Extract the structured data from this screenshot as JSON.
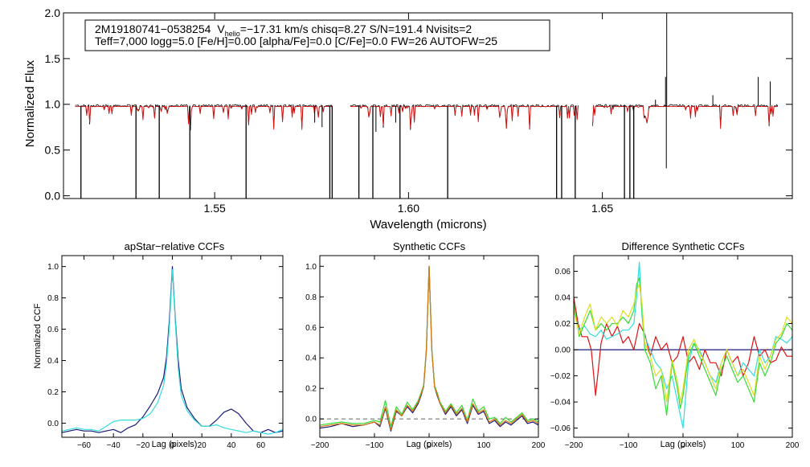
{
  "colors": {
    "axis": "#000000",
    "observed": "#000000",
    "model": "#dd1111",
    "navy": "#1a1a7a",
    "cyan": "#33dddd",
    "green": "#33dd33",
    "yellow": "#dddd22",
    "orange": "#dd7711",
    "gray_dash": "#777777"
  },
  "info_box": {
    "line1_star": "2M19180741−0538254",
    "line1_v": "V",
    "line1_sub": "helio",
    "line1_rest": "=−17.31 km/s  chisq=8.27  S/N=191.4  Nvisits=2",
    "line2": "Teff=7,000 logg=5.0 [Fe/H]=0.00 [alpha/Fe]=0.0 [C/Fe]=0.0 FW=26 AUTOFW=25"
  },
  "chart_data": [
    {
      "type": "line",
      "id": "spectrum",
      "xlabel": "Wavelength (microns)",
      "ylabel": "Normalized Flux",
      "xlim": [
        1.511,
        1.699
      ],
      "ylim": [
        -0.03,
        2.0
      ],
      "xticks": [
        1.55,
        1.6,
        1.65
      ],
      "xtick_labels": [
        "1.55",
        "1.60",
        "1.65"
      ],
      "yticks": [
        0.0,
        0.5,
        1.0,
        1.5,
        2.0
      ],
      "ytick_labels": [
        "0.0",
        "0.5",
        "1.0",
        "1.5",
        "2.0"
      ],
      "chips": [
        [
          1.514,
          1.5805
        ],
        [
          1.585,
          1.644
        ],
        [
          1.6475,
          1.6955
        ]
      ],
      "continuum": 0.985,
      "drops_to_zero": [
        1.5155,
        1.5297,
        1.5357,
        1.5436,
        1.5581,
        1.5797,
        1.5803,
        1.5872,
        1.5908,
        1.5978,
        1.6101,
        1.6382,
        1.6395,
        1.643,
        1.6557,
        1.6571,
        1.6581
      ],
      "emission_spikes": [
        {
          "x": 1.6666,
          "y": 2.0
        },
        {
          "x": 1.6663,
          "y": 1.3
        },
        {
          "x": 1.6637,
          "y": 1.05
        },
        {
          "x": 1.6902,
          "y": 1.3
        },
        {
          "x": 1.6933,
          "y": 1.25
        },
        {
          "x": 1.6785,
          "y": 1.1
        }
      ],
      "absorption_deep": [
        {
          "x": 1.6665,
          "y": 0.3
        },
        {
          "x": 1.5777,
          "y": 0.75
        },
        {
          "x": 1.5758,
          "y": 0.8
        },
        {
          "x": 1.5916,
          "y": 0.7
        },
        {
          "x": 1.5967,
          "y": 0.8
        }
      ],
      "series": [
        {
          "name": "observed",
          "color": "#000000"
        },
        {
          "name": "model",
          "color": "#dd1111"
        }
      ]
    },
    {
      "type": "line",
      "id": "apstar-ccf",
      "title": "apStar−relative CCFs",
      "xlabel": "Lag (pixels)",
      "ylabel": "Normalized CCF",
      "xlim": [
        -75,
        75
      ],
      "ylim": [
        -0.09,
        1.07
      ],
      "xticks": [
        -60,
        -40,
        -20,
        0,
        20,
        40,
        60
      ],
      "xtick_labels": [
        "−60",
        "−40",
        "−20",
        "0",
        "20",
        "40",
        "60"
      ],
      "yticks": [
        0.0,
        0.2,
        0.4,
        0.6,
        0.8,
        1.0
      ],
      "ytick_labels": [
        "0.0",
        "0.2",
        "0.4",
        "0.6",
        "0.8",
        "1.0"
      ],
      "series": [
        {
          "name": "visit 1",
          "color": "#1a1a7a",
          "x": [
            -75,
            -65,
            -60,
            -55,
            -50,
            -45,
            -40,
            -35,
            -30,
            -25,
            -20,
            -15,
            -10,
            -6,
            -4,
            -2,
            0,
            2,
            4,
            6,
            10,
            15,
            20,
            25,
            30,
            35,
            40,
            45,
            50,
            55,
            60,
            65,
            70,
            75
          ],
          "y": [
            -0.06,
            -0.04,
            -0.05,
            -0.05,
            -0.06,
            -0.05,
            -0.04,
            -0.06,
            -0.03,
            -0.01,
            0.04,
            0.11,
            0.19,
            0.29,
            0.42,
            0.66,
            1.0,
            0.66,
            0.4,
            0.22,
            0.1,
            0.03,
            -0.02,
            -0.02,
            0.02,
            0.07,
            0.09,
            0.06,
            0.0,
            -0.05,
            -0.06,
            -0.04,
            -0.06,
            -0.05
          ]
        },
        {
          "name": "visit 2",
          "color": "#33dddd",
          "x": [
            -75,
            -65,
            -60,
            -55,
            -50,
            -45,
            -40,
            -35,
            -30,
            -25,
            -20,
            -15,
            -10,
            -6,
            -4,
            -2,
            0,
            2,
            4,
            6,
            10,
            15,
            20,
            25,
            30,
            35,
            40,
            45,
            50,
            55,
            60,
            65,
            70,
            75
          ],
          "y": [
            -0.05,
            -0.03,
            -0.04,
            -0.04,
            -0.05,
            -0.02,
            0.01,
            0.02,
            0.02,
            0.02,
            0.03,
            0.06,
            0.13,
            0.24,
            0.38,
            0.62,
            0.98,
            0.64,
            0.35,
            0.18,
            0.08,
            0.02,
            -0.02,
            -0.02,
            -0.01,
            -0.03,
            -0.04,
            -0.05,
            -0.06,
            -0.05,
            -0.06,
            -0.07,
            -0.06,
            -0.04
          ]
        }
      ]
    },
    {
      "type": "line",
      "id": "synthetic-ccf",
      "title": "Synthetic CCFs",
      "xlabel": "Lag (pixels)",
      "xlim": [
        -200,
        200
      ],
      "ylim": [
        -0.12,
        1.07
      ],
      "xticks": [
        -200,
        -100,
        0,
        100,
        200
      ],
      "xtick_labels": [
        "−200",
        "−100",
        "0",
        "100",
        "200"
      ],
      "yticks": [
        0.0,
        0.2,
        0.4,
        0.6,
        0.8,
        1.0
      ],
      "ytick_labels": [
        "0.0",
        "0.2",
        "0.4",
        "0.6",
        "0.8",
        "1.0"
      ],
      "zero_line": 0.0,
      "series": [
        {
          "name": "visit 1",
          "color": "#1a1a7a",
          "x": [
            -200,
            -180,
            -160,
            -140,
            -120,
            -100,
            -90,
            -80,
            -70,
            -60,
            -50,
            -40,
            -30,
            -20,
            -15,
            -10,
            -5,
            0,
            5,
            10,
            15,
            20,
            30,
            40,
            50,
            60,
            70,
            80,
            90,
            100,
            110,
            120,
            130,
            140,
            150,
            160,
            170,
            180,
            190,
            200
          ],
          "y": [
            -0.06,
            -0.05,
            -0.03,
            -0.05,
            -0.04,
            -0.02,
            -0.05,
            0.07,
            -0.08,
            0.05,
            0.02,
            0.08,
            0.04,
            0.1,
            0.15,
            0.21,
            0.45,
            1.0,
            0.45,
            0.21,
            0.15,
            0.1,
            0.03,
            0.08,
            0.02,
            0.06,
            -0.03,
            0.09,
            0.03,
            0.05,
            -0.03,
            -0.01,
            -0.05,
            -0.02,
            -0.04,
            -0.01,
            0.02,
            -0.03,
            -0.02,
            -0.04
          ]
        },
        {
          "name": "visit 2",
          "color": "#33dd33",
          "x": [
            -200,
            -180,
            -160,
            -140,
            -120,
            -100,
            -90,
            -80,
            -70,
            -60,
            -50,
            -40,
            -30,
            -20,
            -15,
            -10,
            -5,
            0,
            5,
            10,
            15,
            20,
            30,
            40,
            50,
            60,
            70,
            80,
            90,
            100,
            110,
            120,
            130,
            140,
            150,
            160,
            170,
            180,
            190,
            200
          ],
          "y": [
            -0.04,
            -0.03,
            -0.02,
            -0.03,
            -0.03,
            -0.01,
            -0.02,
            0.12,
            -0.05,
            0.08,
            0.03,
            0.11,
            0.06,
            0.12,
            0.17,
            0.22,
            0.46,
            1.0,
            0.46,
            0.22,
            0.17,
            0.11,
            0.05,
            0.1,
            0.04,
            0.09,
            -0.01,
            0.13,
            0.05,
            0.08,
            0.0,
            0.01,
            -0.03,
            0.01,
            -0.02,
            0.01,
            0.04,
            -0.01,
            0.0,
            -0.02
          ]
        },
        {
          "name": "visit 3",
          "color": "#dd7711",
          "x": [
            -200,
            -180,
            -160,
            -140,
            -120,
            -100,
            -90,
            -80,
            -70,
            -60,
            -50,
            -40,
            -30,
            -20,
            -15,
            -10,
            -5,
            0,
            5,
            10,
            15,
            20,
            30,
            40,
            50,
            60,
            70,
            80,
            90,
            100,
            110,
            120,
            130,
            140,
            150,
            160,
            170,
            180,
            190,
            200
          ],
          "y": [
            -0.05,
            -0.04,
            -0.03,
            -0.04,
            -0.04,
            -0.02,
            -0.04,
            0.08,
            -0.07,
            0.06,
            0.02,
            0.09,
            0.05,
            0.11,
            0.16,
            0.21,
            0.45,
            1.0,
            0.45,
            0.21,
            0.16,
            0.1,
            0.04,
            0.09,
            0.03,
            0.07,
            -0.02,
            0.1,
            0.04,
            0.06,
            -0.02,
            0.0,
            -0.04,
            -0.01,
            -0.03,
            0.0,
            0.03,
            -0.02,
            -0.01,
            -0.03
          ]
        }
      ]
    },
    {
      "type": "line",
      "id": "difference-ccf",
      "title": "Difference Synthetic CCFs",
      "xlabel": "Lag (pixels)",
      "xlim": [
        -200,
        200
      ],
      "ylim": [
        -0.067,
        0.072
      ],
      "xticks": [
        -200,
        -100,
        0,
        100,
        200
      ],
      "xtick_labels": [
        "−200",
        "−100",
        "0",
        "100",
        "200"
      ],
      "yticks": [
        -0.06,
        -0.04,
        -0.02,
        0.0,
        0.02,
        0.04,
        0.06
      ],
      "ytick_labels": [
        "−0.06",
        "−0.04",
        "−0.02",
        "0.00",
        "0.02",
        "0.04",
        "0.06"
      ],
      "series": [
        {
          "name": "visit 1",
          "color": "#1a1a7a",
          "x": [
            -200,
            200
          ],
          "y": [
            0.0,
            0.0
          ]
        },
        {
          "name": "red",
          "color": "#dd1111",
          "x": [
            -200,
            -192,
            -185,
            -175,
            -168,
            -160,
            -150,
            -140,
            -130,
            -120,
            -110,
            -100,
            -90,
            -80,
            -70,
            -60,
            -50,
            -40,
            -30,
            -20,
            -10,
            0,
            10,
            20,
            30,
            40,
            50,
            60,
            70,
            80,
            90,
            100,
            110,
            120,
            130,
            140,
            150,
            160,
            170,
            180,
            190,
            200
          ],
          "y": [
            0.04,
            0.02,
            0.01,
            0.01,
            0.0,
            -0.035,
            0.005,
            0.02,
            0.01,
            0.018,
            0.005,
            0.01,
            0.0,
            0.02,
            0.012,
            -0.005,
            0.01,
            0.0,
            0.005,
            -0.01,
            -0.005,
            0.01,
            -0.01,
            -0.005,
            -0.015,
            0.0,
            -0.01,
            -0.01,
            -0.02,
            0.0,
            -0.01,
            -0.005,
            -0.02,
            -0.01,
            0.01,
            -0.005,
            0.0,
            -0.01,
            -0.008,
            0.002,
            -0.005,
            -0.005
          ]
        },
        {
          "name": "cyan",
          "color": "#33dddd",
          "x": [
            -200,
            -190,
            -180,
            -170,
            -160,
            -150,
            -140,
            -130,
            -120,
            -110,
            -100,
            -90,
            -85,
            -80,
            -75,
            -70,
            -60,
            -50,
            -40,
            -30,
            -20,
            -10,
            -5,
            0,
            10,
            20,
            30,
            40,
            50,
            60,
            70,
            80,
            90,
            100,
            110,
            120,
            130,
            140,
            150,
            160,
            170,
            180,
            190,
            200
          ],
          "y": [
            0.03,
            0.015,
            0.018,
            0.012,
            0.01,
            0.015,
            0.008,
            0.01,
            0.012,
            0.015,
            0.015,
            0.02,
            0.04,
            0.067,
            0.025,
            0.01,
            0.0,
            -0.01,
            -0.015,
            -0.03,
            -0.02,
            -0.04,
            -0.05,
            -0.06,
            -0.01,
            0.005,
            0.0,
            -0.01,
            -0.02,
            -0.025,
            -0.01,
            0.0,
            -0.01,
            -0.02,
            -0.01,
            -0.015,
            -0.02,
            0.0,
            -0.01,
            -0.005,
            0.01,
            0.008,
            0.005,
            0.01
          ]
        },
        {
          "name": "green",
          "color": "#33dd33",
          "x": [
            -200,
            -190,
            -180,
            -170,
            -160,
            -150,
            -140,
            -130,
            -120,
            -110,
            -100,
            -90,
            -85,
            -80,
            -75,
            -70,
            -60,
            -50,
            -40,
            -30,
            -20,
            -10,
            -5,
            0,
            10,
            20,
            30,
            40,
            50,
            60,
            70,
            80,
            90,
            100,
            110,
            120,
            130,
            140,
            150,
            160,
            170,
            180,
            190,
            200
          ],
          "y": [
            0.035,
            0.01,
            0.02,
            0.03,
            0.015,
            0.02,
            0.015,
            0.02,
            0.02,
            0.025,
            0.02,
            0.03,
            0.05,
            0.055,
            0.03,
            0.0,
            -0.01,
            -0.03,
            -0.02,
            -0.05,
            -0.01,
            -0.03,
            -0.045,
            -0.035,
            -0.005,
            0.005,
            -0.005,
            -0.015,
            -0.025,
            -0.035,
            -0.015,
            -0.005,
            -0.015,
            -0.025,
            -0.02,
            -0.03,
            -0.04,
            -0.01,
            -0.02,
            -0.01,
            0.005,
            0.01,
            0.02,
            0.015
          ]
        },
        {
          "name": "yellow",
          "color": "#dddd22",
          "x": [
            -200,
            -190,
            -180,
            -170,
            -160,
            -150,
            -140,
            -130,
            -120,
            -110,
            -100,
            -90,
            -85,
            -80,
            -75,
            -70,
            -60,
            -50,
            -40,
            -30,
            -20,
            -10,
            -5,
            0,
            10,
            20,
            30,
            40,
            50,
            60,
            70,
            80,
            90,
            100,
            110,
            120,
            130,
            140,
            150,
            160,
            170,
            180,
            190,
            200
          ],
          "y": [
            0.03,
            0.012,
            0.025,
            0.035,
            0.015,
            0.025,
            0.02,
            0.025,
            0.018,
            0.03,
            0.025,
            0.035,
            0.045,
            0.05,
            0.035,
            0.005,
            -0.005,
            -0.02,
            -0.015,
            -0.04,
            -0.008,
            -0.025,
            -0.04,
            -0.03,
            0.0,
            0.008,
            -0.002,
            -0.01,
            -0.02,
            -0.03,
            -0.01,
            0.0,
            -0.01,
            -0.02,
            -0.015,
            -0.025,
            -0.035,
            -0.005,
            -0.015,
            -0.005,
            0.008,
            0.012,
            0.025,
            0.02
          ]
        }
      ]
    }
  ]
}
